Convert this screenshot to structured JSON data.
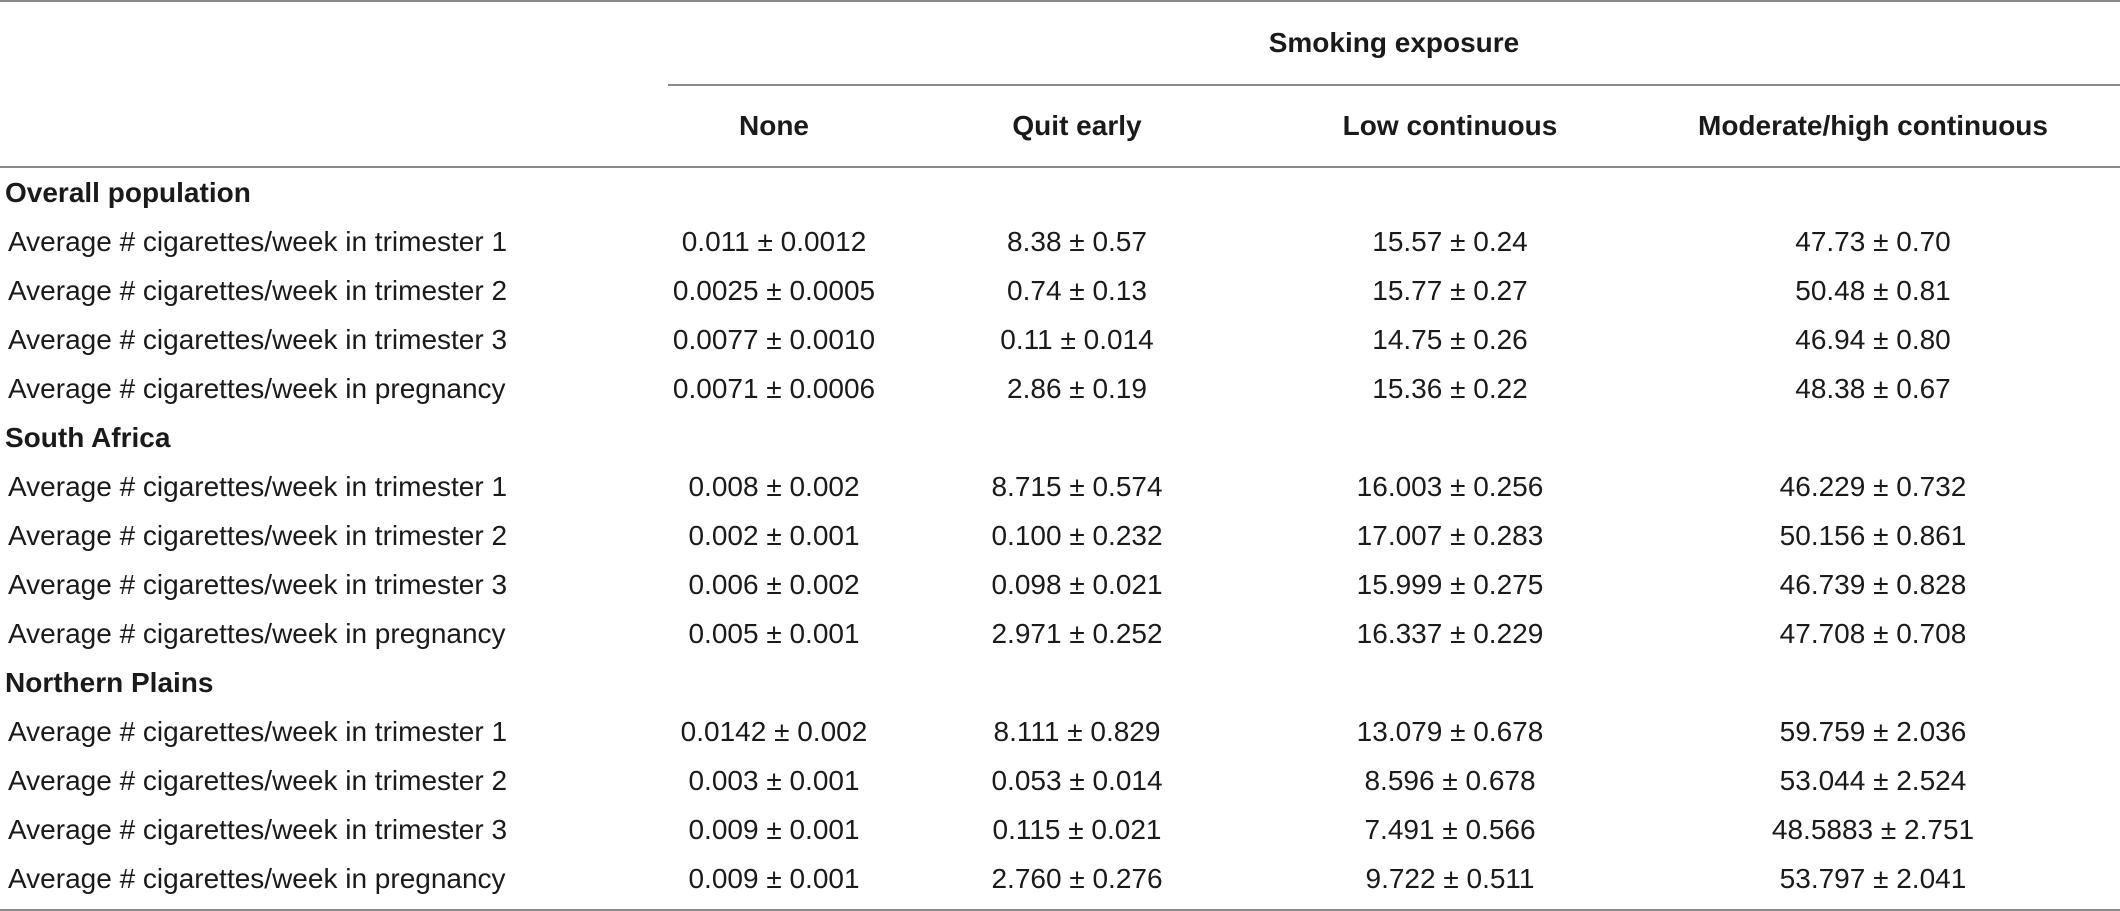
{
  "table": {
    "group_header": "Smoking exposure",
    "columns": [
      "None",
      "Quit early",
      "Low continuous",
      "Moderate/high continuous"
    ],
    "sections": [
      {
        "name": "Overall population",
        "rows": [
          {
            "label": "Average # cigarettes/week in trimester 1",
            "values": [
              "0.011 ± 0.0012",
              "8.38 ± 0.57",
              "15.57 ± 0.24",
              "47.73 ± 0.70"
            ]
          },
          {
            "label": "Average # cigarettes/week in trimester 2",
            "values": [
              "0.0025 ± 0.0005",
              "0.74 ± 0.13",
              "15.77 ± 0.27",
              "50.48 ± 0.81"
            ]
          },
          {
            "label": "Average # cigarettes/week in trimester 3",
            "values": [
              "0.0077 ± 0.0010",
              "0.11 ± 0.014",
              "14.75 ± 0.26",
              "46.94 ± 0.80"
            ]
          },
          {
            "label": "Average # cigarettes/week in pregnancy",
            "values": [
              "0.0071 ± 0.0006",
              "2.86 ± 0.19",
              "15.36 ± 0.22",
              "48.38 ± 0.67"
            ]
          }
        ]
      },
      {
        "name": "South Africa",
        "rows": [
          {
            "label": "Average # cigarettes/week in trimester 1",
            "values": [
              "0.008 ± 0.002",
              "8.715 ± 0.574",
              "16.003 ± 0.256",
              "46.229 ± 0.732"
            ]
          },
          {
            "label": "Average # cigarettes/week in trimester 2",
            "values": [
              "0.002 ± 0.001",
              "0.100 ± 0.232",
              "17.007 ± 0.283",
              "50.156 ± 0.861"
            ]
          },
          {
            "label": "Average # cigarettes/week in trimester 3",
            "values": [
              "0.006 ± 0.002",
              "0.098 ± 0.021",
              "15.999 ± 0.275",
              "46.739 ± 0.828"
            ]
          },
          {
            "label": "Average # cigarettes/week in pregnancy",
            "values": [
              "0.005 ± 0.001",
              "2.971 ± 0.252",
              "16.337 ± 0.229",
              "47.708 ± 0.708"
            ]
          }
        ]
      },
      {
        "name": "Northern Plains",
        "rows": [
          {
            "label": "Average # cigarettes/week in trimester 1",
            "values": [
              "0.0142 ± 0.002",
              "8.111 ± 0.829",
              "13.079 ± 0.678",
              "59.759 ± 2.036"
            ]
          },
          {
            "label": "Average # cigarettes/week in trimester 2",
            "values": [
              "0.003 ± 0.001",
              "0.053 ± 0.014",
              "8.596 ± 0.678",
              "53.044 ± 2.524"
            ]
          },
          {
            "label": "Average # cigarettes/week in trimester 3",
            "values": [
              "0.009 ± 0.001",
              "0.115 ± 0.021",
              "7.491 ± 0.566",
              "48.5883 ± 2.751"
            ]
          },
          {
            "label": "Average # cigarettes/week in pregnancy",
            "values": [
              "0.009 ± 0.001",
              "2.760 ± 0.276",
              "9.722 ± 0.511",
              "53.797 ± 2.041"
            ]
          }
        ]
      }
    ]
  }
}
